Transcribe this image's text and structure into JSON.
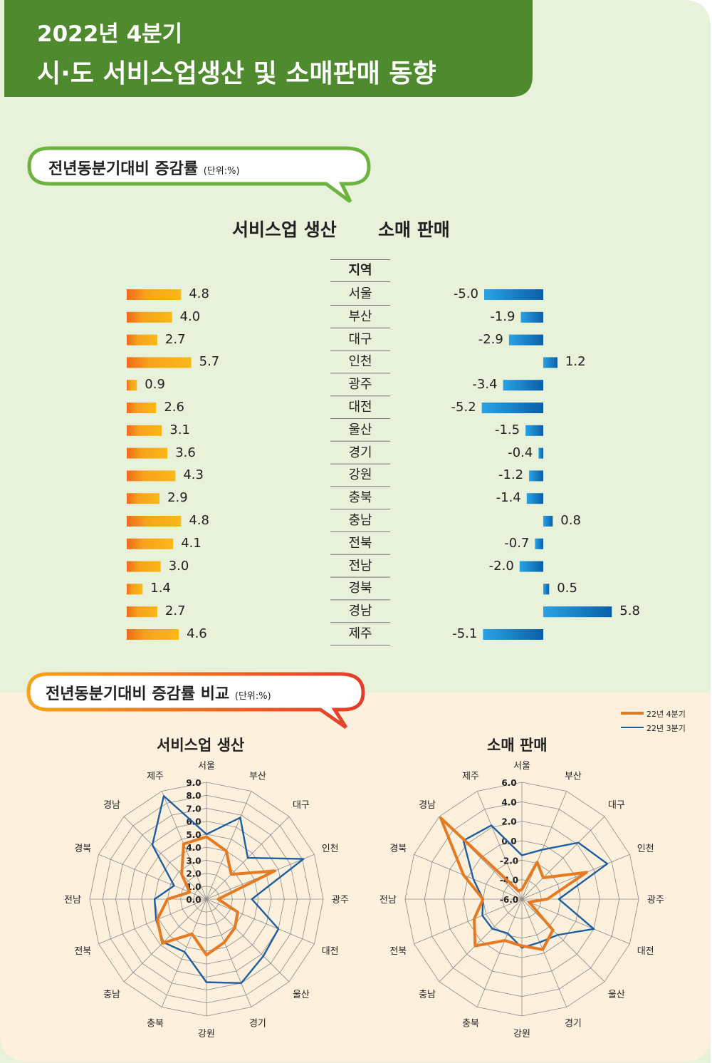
{
  "header": {
    "title_line1": "2022년 4분기",
    "title_line2": "시·도 서비스업생산 및 소매판매 동향"
  },
  "section1": {
    "title": "전년동분기대비 증감률",
    "unit": "(단위:%)",
    "left_header": "서비스업 생산",
    "right_header": "소매 판매",
    "region_header": "지역"
  },
  "section2": {
    "title": "전년동분기대비 증감률 비교",
    "unit": "(단위:%)"
  },
  "colors": {
    "green_dark": "#4f8a2e",
    "green_light": "#e8f1d9",
    "peach": "#fdf0dc",
    "orange_bar": "#f7a21b",
    "blue_bar": "#1e8ed3",
    "radar_q4": "#e57a22",
    "radar_q3": "#1c5ea0"
  },
  "chart_data": [
    {
      "type": "bar",
      "orientation": "horizontal",
      "title": "서비스업 생산",
      "categories": [
        "서울",
        "부산",
        "대구",
        "인천",
        "광주",
        "대전",
        "울산",
        "경기",
        "강원",
        "충북",
        "충남",
        "전북",
        "전남",
        "경북",
        "경남",
        "제주"
      ],
      "values": [
        4.8,
        4.0,
        2.7,
        5.7,
        0.9,
        2.6,
        3.1,
        3.6,
        4.3,
        2.9,
        4.8,
        4.1,
        3.0,
        1.4,
        2.7,
        4.6
      ],
      "value_labels": [
        "4.8",
        "4.0",
        "2.7",
        "5.7",
        "0.9",
        "2.6",
        "3.1",
        "3.6",
        "4.3",
        "2.9",
        "4.8",
        "4.1",
        "3.0",
        "1.4",
        "2.7",
        "4.6"
      ]
    },
    {
      "type": "bar",
      "orientation": "horizontal",
      "title": "소매 판매",
      "categories": [
        "서울",
        "부산",
        "대구",
        "인천",
        "광주",
        "대전",
        "울산",
        "경기",
        "강원",
        "충북",
        "충남",
        "전북",
        "전남",
        "경북",
        "경남",
        "제주"
      ],
      "values": [
        -5.0,
        -1.9,
        -2.9,
        1.2,
        -3.4,
        -5.2,
        -1.5,
        -0.4,
        -1.2,
        -1.4,
        0.8,
        -0.7,
        -2.0,
        0.5,
        5.8,
        -5.1
      ],
      "value_labels": [
        "-5.0",
        "-1.9",
        "-2.9",
        "1.2",
        "-3.4",
        "-5.2",
        "-1.5",
        "-0.4",
        "-1.2",
        "-1.4",
        "0.8",
        "-0.7",
        "-2.0",
        "0.5",
        "5.8",
        "-5.1"
      ]
    },
    {
      "type": "radar",
      "title": "서비스업 생산",
      "categories": [
        "서울",
        "부산",
        "대구",
        "인천",
        "광주",
        "대전",
        "울산",
        "경기",
        "강원",
        "충북",
        "충남",
        "전북",
        "전남",
        "경북",
        "경남",
        "제주"
      ],
      "rlim": [
        0,
        9
      ],
      "ticks": [
        "0.0",
        "1.0",
        "2.0",
        "3.0",
        "4.0",
        "5.0",
        "6.0",
        "7.0",
        "8.0",
        "9.0"
      ],
      "series": [
        {
          "name": "22년 4분기",
          "values": [
            4.8,
            4.0,
            2.7,
            5.7,
            0.9,
            2.6,
            3.1,
            3.6,
            4.3,
            2.9,
            4.8,
            4.1,
            3.0,
            1.4,
            2.7,
            4.6
          ]
        },
        {
          "name": "22년 3분기",
          "values": [
            5.0,
            6.8,
            4.5,
            8.1,
            3.5,
            6.0,
            6.2,
            7.0,
            6.4,
            4.4,
            4.7,
            4.2,
            4.0,
            2.7,
            5.9,
            8.6
          ]
        }
      ]
    },
    {
      "type": "radar",
      "title": "소매 판매",
      "categories": [
        "서울",
        "부산",
        "대구",
        "인천",
        "광주",
        "대전",
        "울산",
        "경기",
        "강원",
        "충북",
        "충남",
        "전북",
        "전남",
        "경북",
        "경남",
        "제주"
      ],
      "rlim": [
        -6,
        6
      ],
      "ticks": [
        "-6.0",
        "-4.0",
        "-2.0",
        "0.0",
        "2.0",
        "4.0",
        "6.0"
      ],
      "series": [
        {
          "name": "22년 4분기",
          "values": [
            -5.0,
            -1.9,
            -2.9,
            1.2,
            -3.4,
            -5.2,
            -1.5,
            -0.4,
            -1.2,
            -1.4,
            0.8,
            -0.7,
            -2.0,
            0.5,
            5.8,
            -5.1
          ]
        },
        {
          "name": "22년 3분기",
          "values": [
            -1.5,
            -0.5,
            2.2,
            3.5,
            -2.2,
            2.0,
            -0.8,
            -1.2,
            -1.0,
            -2.2,
            -1.7,
            -1.6,
            -2.0,
            -0.6,
            2.5,
            2.2
          ]
        }
      ]
    }
  ]
}
